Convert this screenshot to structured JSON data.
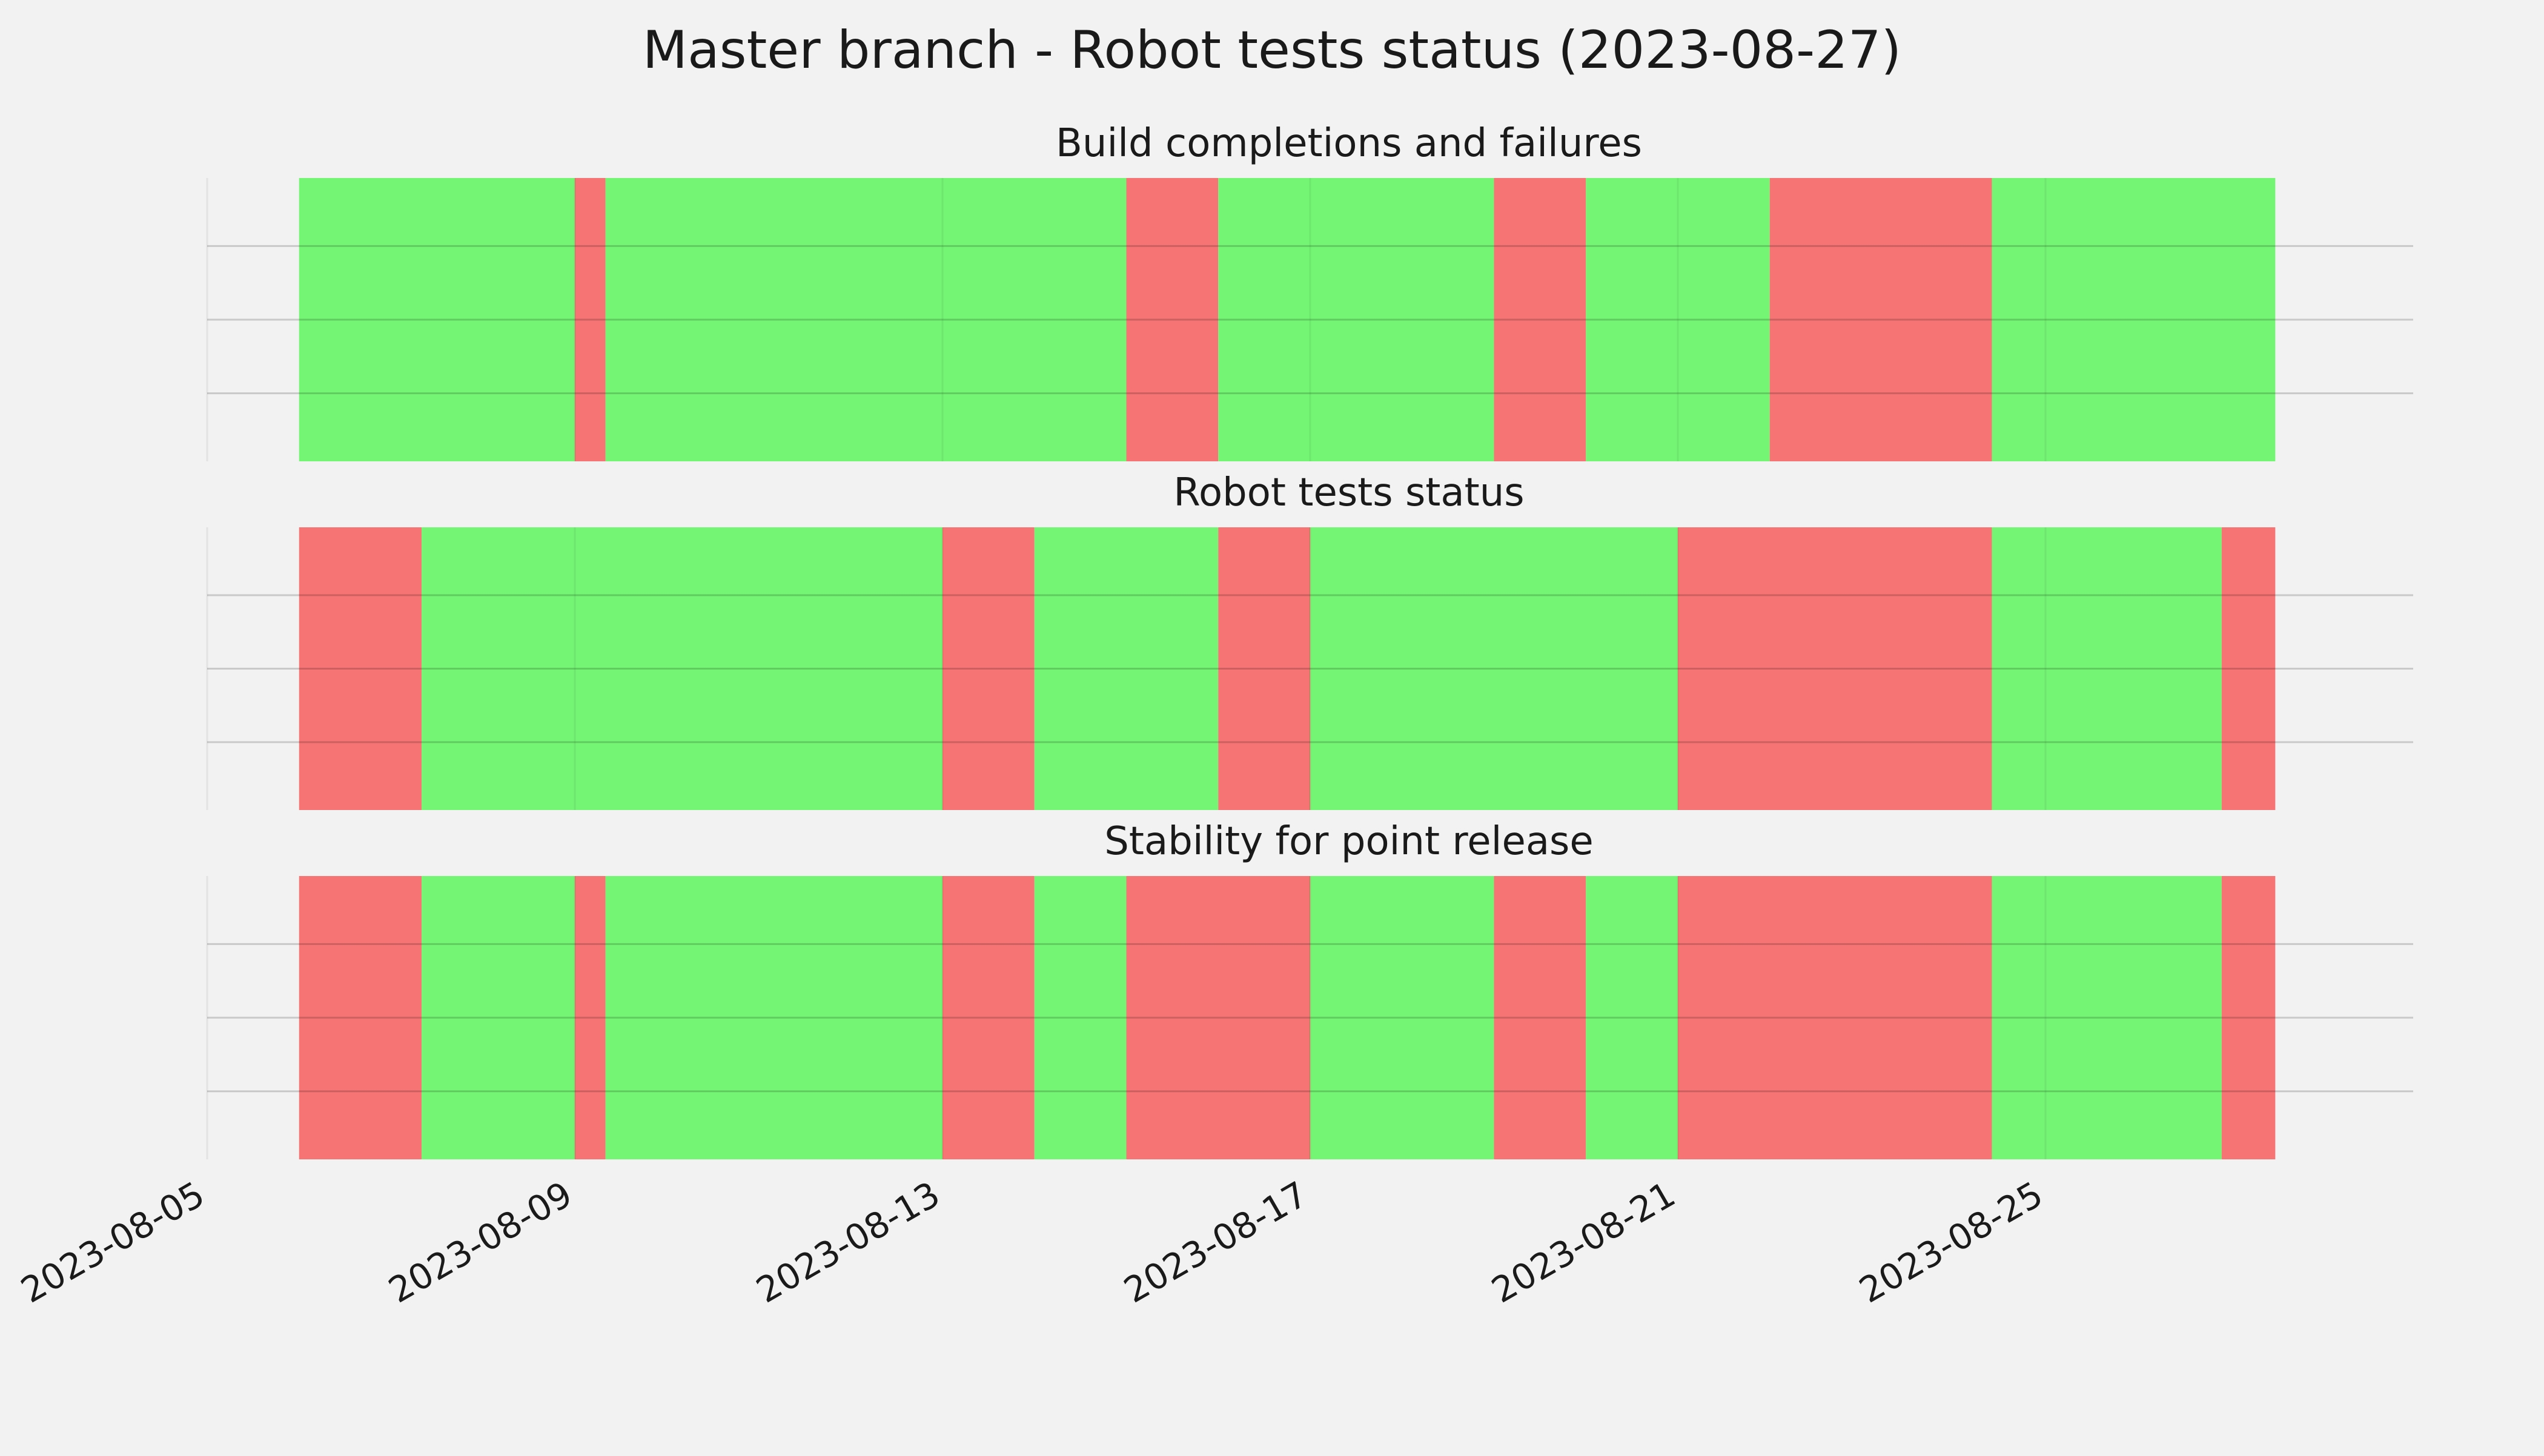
{
  "title": "Master branch - Robot tests status (2023-08-27)",
  "colors": {
    "pass": "#74f674",
    "fail": "#f67474",
    "background": "#f2f2f2",
    "grid": "#c8c8c8"
  },
  "chart_data": [
    {
      "type": "timeline",
      "title": "Build completions and failures",
      "x_start": "2023-08-06",
      "x_end": "2023-08-27T12:00",
      "segments": [
        {
          "start": "2023-08-06",
          "end": "2023-08-09",
          "status": "pass"
        },
        {
          "start": "2023-08-09",
          "end": "2023-08-09T08:00",
          "status": "fail"
        },
        {
          "start": "2023-08-09T08:00",
          "end": "2023-08-15",
          "status": "pass"
        },
        {
          "start": "2023-08-15",
          "end": "2023-08-16",
          "status": "fail"
        },
        {
          "start": "2023-08-16",
          "end": "2023-08-19",
          "status": "pass"
        },
        {
          "start": "2023-08-19",
          "end": "2023-08-20",
          "status": "fail"
        },
        {
          "start": "2023-08-20",
          "end": "2023-08-22",
          "status": "pass"
        },
        {
          "start": "2023-08-22",
          "end": "2023-08-24T10:00",
          "status": "fail"
        },
        {
          "start": "2023-08-24T10:00",
          "end": "2023-08-27T12:00",
          "status": "pass"
        }
      ]
    },
    {
      "type": "timeline",
      "title": "Robot tests status",
      "x_start": "2023-08-06",
      "x_end": "2023-08-27T12:00",
      "segments": [
        {
          "start": "2023-08-06",
          "end": "2023-08-07T08:00",
          "status": "fail"
        },
        {
          "start": "2023-08-07T08:00",
          "end": "2023-08-13",
          "status": "pass"
        },
        {
          "start": "2023-08-13",
          "end": "2023-08-14",
          "status": "fail"
        },
        {
          "start": "2023-08-14",
          "end": "2023-08-16",
          "status": "pass"
        },
        {
          "start": "2023-08-16",
          "end": "2023-08-17",
          "status": "fail"
        },
        {
          "start": "2023-08-17",
          "end": "2023-08-21",
          "status": "pass"
        },
        {
          "start": "2023-08-21",
          "end": "2023-08-24T10:00",
          "status": "fail"
        },
        {
          "start": "2023-08-24T10:00",
          "end": "2023-08-26T22:00",
          "status": "pass"
        },
        {
          "start": "2023-08-26T22:00",
          "end": "2023-08-27T12:00",
          "status": "fail"
        }
      ]
    },
    {
      "type": "timeline",
      "title": "Stability for point release",
      "x_start": "2023-08-06",
      "x_end": "2023-08-27T12:00",
      "segments": [
        {
          "start": "2023-08-06",
          "end": "2023-08-07T08:00",
          "status": "fail"
        },
        {
          "start": "2023-08-07T08:00",
          "end": "2023-08-09",
          "status": "pass"
        },
        {
          "start": "2023-08-09",
          "end": "2023-08-09T08:00",
          "status": "fail"
        },
        {
          "start": "2023-08-09T08:00",
          "end": "2023-08-13",
          "status": "pass"
        },
        {
          "start": "2023-08-13",
          "end": "2023-08-14",
          "status": "fail"
        },
        {
          "start": "2023-08-14",
          "end": "2023-08-15",
          "status": "pass"
        },
        {
          "start": "2023-08-15",
          "end": "2023-08-17",
          "status": "fail"
        },
        {
          "start": "2023-08-17",
          "end": "2023-08-19",
          "status": "pass"
        },
        {
          "start": "2023-08-19",
          "end": "2023-08-20",
          "status": "fail"
        },
        {
          "start": "2023-08-20",
          "end": "2023-08-21",
          "status": "pass"
        },
        {
          "start": "2023-08-21",
          "end": "2023-08-24T10:00",
          "status": "fail"
        },
        {
          "start": "2023-08-24T10:00",
          "end": "2023-08-26T22:00",
          "status": "pass"
        },
        {
          "start": "2023-08-26T22:00",
          "end": "2023-08-27T12:00",
          "status": "fail"
        }
      ]
    }
  ],
  "x_axis": {
    "xlim": [
      "2023-08-05",
      "2023-08-29"
    ],
    "ticks": [
      "2023-08-05",
      "2023-08-09",
      "2023-08-13",
      "2023-08-17",
      "2023-08-21",
      "2023-08-25"
    ]
  }
}
